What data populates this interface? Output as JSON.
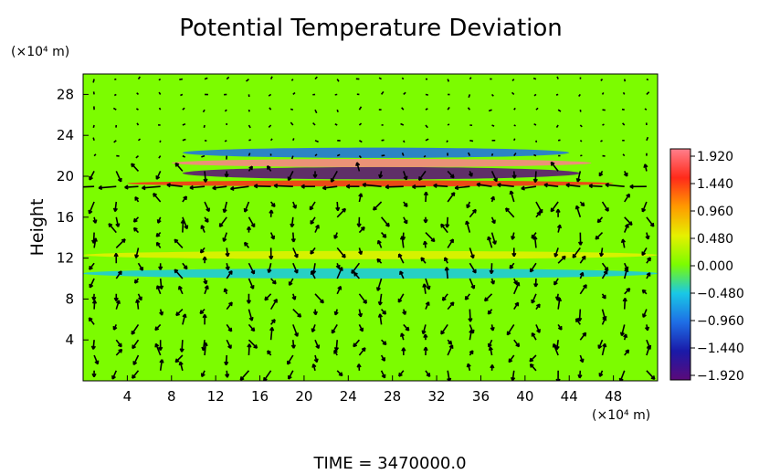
{
  "chart_data": {
    "type": "heatmap",
    "title": "Potential Temperature Deviation",
    "ylabel": "Height",
    "y_unit": "(×10⁴ m)",
    "x_unit": "(×10⁴ m)",
    "xlim": [
      0,
      52
    ],
    "ylim": [
      0,
      30
    ],
    "x_ticks": [
      "4",
      "8",
      "12",
      "16",
      "20",
      "24",
      "28",
      "32",
      "36",
      "40",
      "44",
      "48"
    ],
    "y_ticks": [
      "4",
      "8",
      "12",
      "16",
      "20",
      "24",
      "28"
    ],
    "colorbar": {
      "min": -1.92,
      "max": 1.92,
      "ticks": [
        "1.920",
        "1.440",
        "0.960",
        "0.480",
        "0.000",
        "−0.480",
        "−0.960",
        "−1.440",
        "−1.920"
      ],
      "colors": [
        "#5b0a7a",
        "#1a1aa8",
        "#1e6ee6",
        "#19c8e6",
        "#7cfc00",
        "#e6f000",
        "#ff9a00",
        "#ff2a1a",
        "#ff7f8c"
      ]
    },
    "background_value": 0.0,
    "features": [
      {
        "type": "band",
        "y_center": 20.3,
        "thickness": 1.2,
        "value": -1.9,
        "x_range": [
          9,
          45
        ]
      },
      {
        "type": "band",
        "y_center": 21.3,
        "thickness": 0.8,
        "value": 1.7,
        "x_range": [
          8,
          46
        ]
      },
      {
        "type": "band",
        "y_center": 19.3,
        "thickness": 0.6,
        "value": 1.2,
        "x_range": [
          4,
          48
        ]
      },
      {
        "type": "band",
        "y_center": 22.3,
        "thickness": 1.0,
        "value": -0.8,
        "x_range": [
          9,
          44
        ]
      },
      {
        "type": "band",
        "y_center": 12.3,
        "thickness": 0.8,
        "value": 0.5,
        "x_range": [
          0,
          52
        ]
      },
      {
        "type": "band",
        "y_center": 10.5,
        "thickness": 1.0,
        "value": -0.3,
        "x_range": [
          0,
          52
        ]
      }
    ],
    "vector_field": {
      "description": "wind arrows",
      "x_spacing": 2,
      "y_spacing": 1.5,
      "dominant_direction_near_y20": "westward"
    },
    "time_label": "TIME  =  3470000.0"
  }
}
